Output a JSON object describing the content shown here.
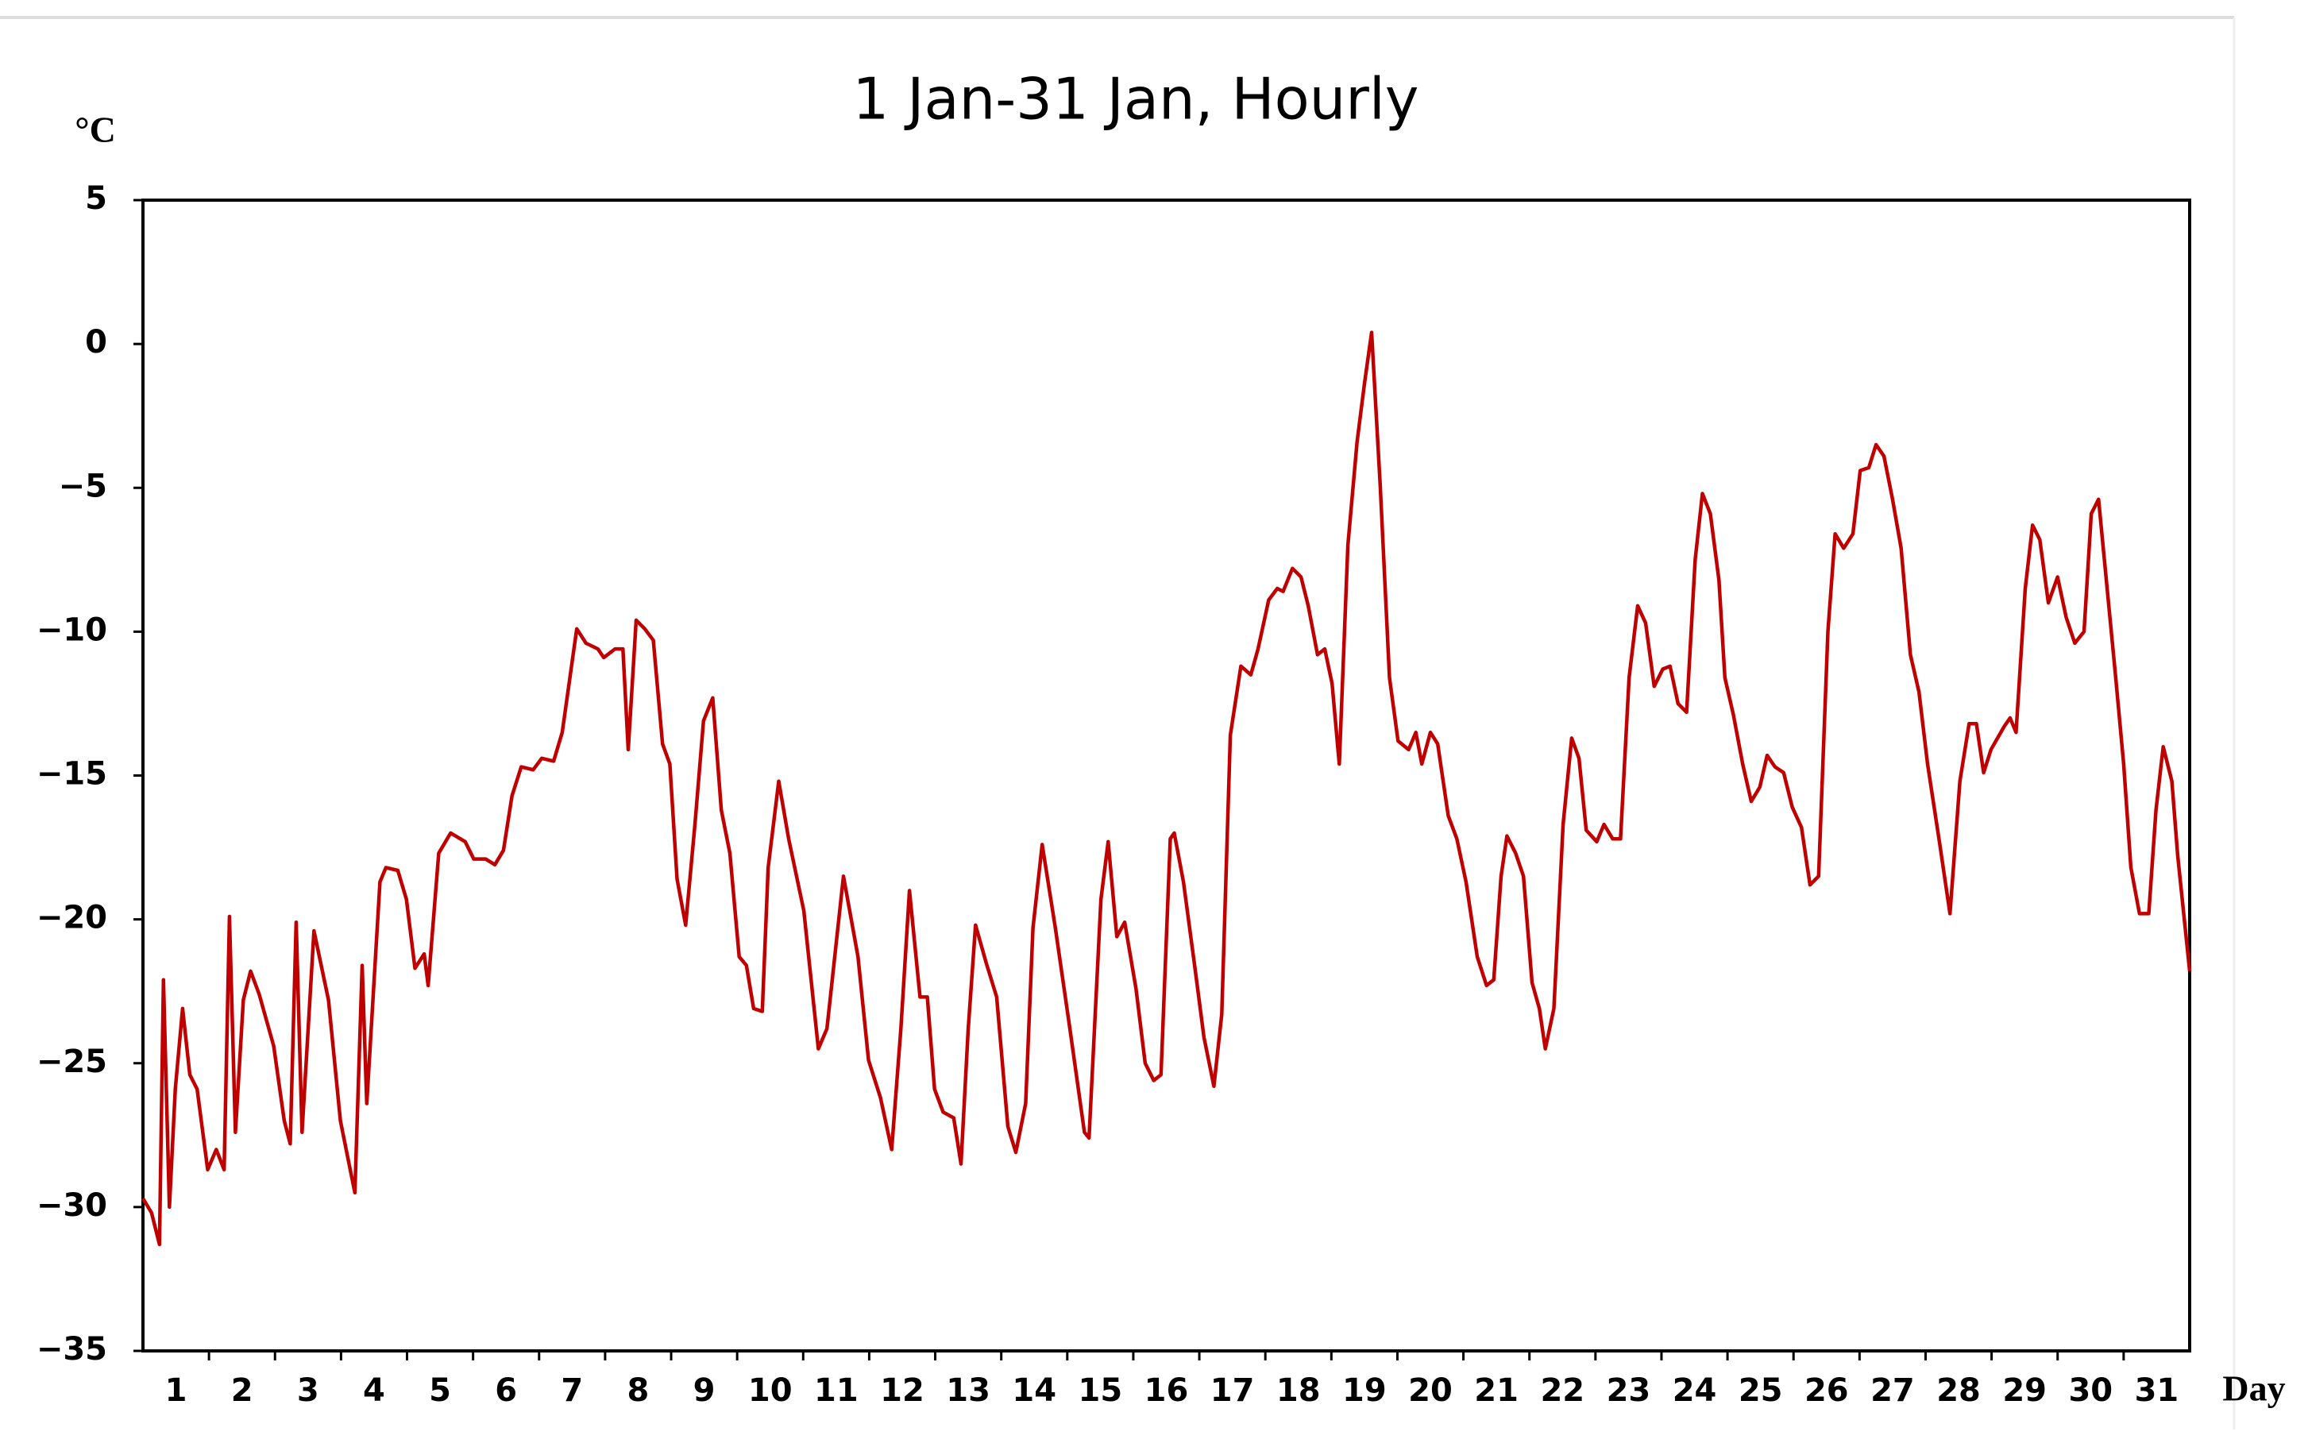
{
  "chart_data": {
    "type": "line",
    "title": "1 Jan-31 Jan, Hourly",
    "y_label": "°C",
    "x_label": "Day",
    "color": "#c00000",
    "xlim": [
      0,
      31
    ],
    "xticks": [
      {
        "value": 0.5,
        "label": "1"
      },
      {
        "value": 1.5,
        "label": "2"
      },
      {
        "value": 2.5,
        "label": "3"
      },
      {
        "value": 3.5,
        "label": "4"
      },
      {
        "value": 4.5,
        "label": "5"
      },
      {
        "value": 5.5,
        "label": "6"
      },
      {
        "value": 6.5,
        "label": "7"
      },
      {
        "value": 7.5,
        "label": "8"
      },
      {
        "value": 8.5,
        "label": "9"
      },
      {
        "value": 9.5,
        "label": "10"
      },
      {
        "value": 10.5,
        "label": "11"
      },
      {
        "value": 11.5,
        "label": "12"
      },
      {
        "value": 12.5,
        "label": "13"
      },
      {
        "value": 13.5,
        "label": "14"
      },
      {
        "value": 14.5,
        "label": "15"
      },
      {
        "value": 15.5,
        "label": "16"
      },
      {
        "value": 16.5,
        "label": "17"
      },
      {
        "value": 17.5,
        "label": "18"
      },
      {
        "value": 18.5,
        "label": "19"
      },
      {
        "value": 19.5,
        "label": "20"
      },
      {
        "value": 20.5,
        "label": "21"
      },
      {
        "value": 21.5,
        "label": "22"
      },
      {
        "value": 22.5,
        "label": "23"
      },
      {
        "value": 23.5,
        "label": "24"
      },
      {
        "value": 24.5,
        "label": "25"
      },
      {
        "value": 25.5,
        "label": "26"
      },
      {
        "value": 26.5,
        "label": "27"
      },
      {
        "value": 27.5,
        "label": "28"
      },
      {
        "value": 28.5,
        "label": "29"
      },
      {
        "value": 29.5,
        "label": "30"
      },
      {
        "value": 30.5,
        "label": "31"
      }
    ],
    "ylim": [
      -35,
      5
    ],
    "yticks": [
      {
        "value": -35,
        "label": "−35"
      },
      {
        "value": -30,
        "label": "−30"
      },
      {
        "value": -25,
        "label": "−25"
      },
      {
        "value": -20,
        "label": "−20"
      },
      {
        "value": -15,
        "label": "−15"
      },
      {
        "value": -10,
        "label": "−10"
      },
      {
        "value": -5,
        "label": "−5"
      },
      0,
      5
    ],
    "x": [
      0,
      0.13,
      0.25,
      0.31,
      0.4,
      0.49,
      0.6,
      0.71,
      0.82,
      0.98,
      1.11,
      1.23,
      1.31,
      1.4,
      1.52,
      1.63,
      1.76,
      1.98,
      2.14,
      2.23,
      2.32,
      2.41,
      2.59,
      2.81,
      2.99,
      3.21,
      3.32,
      3.39,
      3.59,
      3.68,
      3.86,
      3.99,
      4.12,
      4.26,
      4.32,
      4.48,
      4.66,
      4.88,
      5.01,
      5.19,
      5.33,
      5.46,
      5.59,
      5.73,
      5.91,
      6.04,
      6.22,
      6.35,
      6.57,
      6.71,
      6.89,
      6.98,
      7.15,
      7.27,
      7.35,
      7.47,
      7.6,
      7.73,
      7.87,
      7.98,
      8.09,
      8.22,
      8.36,
      8.49,
      8.63,
      8.76,
      8.89,
      9.03,
      9.14,
      9.25,
      9.38,
      9.47,
      9.63,
      9.78,
      10.01,
      10.23,
      10.36,
      10.61,
      10.83,
      10.99,
      11.17,
      11.34,
      11.48,
      11.61,
      11.77,
      11.88,
      11.99,
      12.12,
      12.28,
      12.39,
      12.5,
      12.61,
      12.77,
      12.93,
      13.1,
      13.22,
      13.37,
      13.48,
      13.62,
      13.82,
      14.04,
      14.26,
      14.33,
      14.51,
      14.62,
      14.75,
      14.87,
      15.04,
      15.18,
      15.31,
      15.42,
      15.56,
      15.62,
      15.76,
      15.94,
      16.07,
      16.22,
      16.34,
      16.47,
      16.63,
      16.78,
      16.89,
      17.05,
      17.18,
      17.27,
      17.41,
      17.54,
      17.65,
      17.79,
      17.9,
      18.01,
      18.12,
      18.25,
      18.39,
      18.5,
      18.61,
      18.74,
      18.88,
      19.01,
      19.17,
      19.28,
      19.37,
      19.5,
      19.61,
      19.77,
      19.9,
      20.04,
      20.21,
      20.35,
      20.46,
      20.57,
      20.66,
      20.79,
      20.91,
      21.04,
      21.15,
      21.24,
      21.37,
      21.51,
      21.64,
      21.75,
      21.86,
      22.02,
      22.13,
      22.26,
      22.38,
      22.51,
      22.64,
      22.76,
      22.89,
      23.02,
      23.13,
      23.25,
      23.38,
      23.51,
      23.62,
      23.74,
      23.87,
      23.96,
      24.09,
      24.23,
      24.36,
      24.49,
      24.6,
      24.72,
      24.85,
      24.98,
      25.12,
      25.25,
      25.38,
      25.52,
      25.63,
      25.76,
      25.9,
      26.01,
      26.14,
      26.25,
      26.37,
      26.5,
      26.63,
      26.77,
      26.9,
      27.03,
      27.21,
      27.37,
      27.52,
      27.66,
      27.77,
      27.88,
      27.99,
      28.19,
      28.28,
      28.37,
      28.51,
      28.62,
      28.73,
      28.86,
      29.0,
      29.13,
      29.26,
      29.4,
      29.51,
      29.62,
      29.75,
      29.88,
      30.0,
      30.11,
      30.24,
      30.38,
      30.49,
      30.6,
      30.73,
      30.82,
      31.0
    ],
    "values": [
      -29.7,
      -30.2,
      -31.3,
      -22.1,
      -30,
      -25.9,
      -23.1,
      -25.4,
      -25.9,
      -28.7,
      -28,
      -28.7,
      -19.9,
      -27.4,
      -22.8,
      -21.8,
      -22.6,
      -24.4,
      -27,
      -27.8,
      -20.1,
      -27.4,
      -20.4,
      -22.8,
      -27,
      -29.5,
      -21.6,
      -26.4,
      -18.7,
      -18.2,
      -18.3,
      -19.3,
      -21.7,
      -21.2,
      -22.3,
      -17.7,
      -17.0,
      -17.3,
      -17.9,
      -17.9,
      -18.1,
      -17.6,
      -15.7,
      -14.7,
      -14.8,
      -14.4,
      -14.5,
      -13.5,
      -9.9,
      -10.4,
      -10.6,
      -10.9,
      -10.6,
      -10.6,
      -14.1,
      -9.6,
      -9.9,
      -10.3,
      -13.9,
      -14.6,
      -18.6,
      -20.2,
      -16.7,
      -13.1,
      -12.3,
      -16.2,
      -17.7,
      -21.3,
      -21.6,
      -23.1,
      -23.2,
      -18.2,
      -15.2,
      -17.2,
      -19.7,
      -24.5,
      -23.8,
      -18.5,
      -21.3,
      -24.9,
      -26.2,
      -28,
      -23.8,
      -19,
      -22.7,
      -22.7,
      -25.9,
      -26.7,
      -26.9,
      -28.5,
      -23.8,
      -20.2,
      -21.5,
      -22.7,
      -27.2,
      -28.1,
      -26.4,
      -20.3,
      -17.4,
      -20.3,
      -23.8,
      -27.4,
      -27.6,
      -19.3,
      -17.3,
      -20.6,
      -20.1,
      -22.4,
      -25,
      -25.6,
      -25.4,
      -17.2,
      -17,
      -18.7,
      -21.8,
      -24.1,
      -25.8,
      -23.3,
      -13.6,
      -11.2,
      -11.5,
      -10.6,
      -8.9,
      -8.5,
      -8.6,
      -7.8,
      -8.1,
      -9.1,
      -10.8,
      -10.6,
      -11.8,
      -14.6,
      -7,
      -3.4,
      -1.4,
      0.4,
      -4.9,
      -11.6,
      -13.8,
      -14.1,
      -13.5,
      -14.6,
      -13.5,
      -13.9,
      -16.4,
      -17.2,
      -18.7,
      -21.3,
      -22.3,
      -22.1,
      -18.5,
      -17.1,
      -17.7,
      -18.5,
      -22.2,
      -23.1,
      -24.5,
      -23.1,
      -16.7,
      -13.7,
      -14.4,
      -16.9,
      -17.3,
      -16.7,
      -17.2,
      -17.2,
      -11.6,
      -9.1,
      -9.7,
      -11.9,
      -11.3,
      -11.2,
      -12.5,
      -12.8,
      -7.5,
      -5.2,
      -5.9,
      -8.2,
      -11.6,
      -12.9,
      -14.6,
      -15.9,
      -15.4,
      -14.3,
      -14.7,
      -14.9,
      -16.1,
      -16.8,
      -18.8,
      -18.5,
      -10,
      -6.6,
      -7.1,
      -6.6,
      -4.4,
      -4.3,
      -3.5,
      -3.9,
      -5.4,
      -7.1,
      -10.8,
      -12.1,
      -14.6,
      -17.3,
      -19.8,
      -15.2,
      -13.2,
      -13.2,
      -14.9,
      -14.1,
      -13.3,
      -13,
      -13.5,
      -8.5,
      -6.3,
      -6.8,
      -9,
      -8.1,
      -9.5,
      -10.4,
      -10,
      -5.9,
      -5.4,
      -8.5,
      -11.6,
      -14.6,
      -18.2,
      -19.8,
      -19.8,
      -16.2,
      -14,
      -15.2,
      -17.8,
      -21.8
    ]
  }
}
